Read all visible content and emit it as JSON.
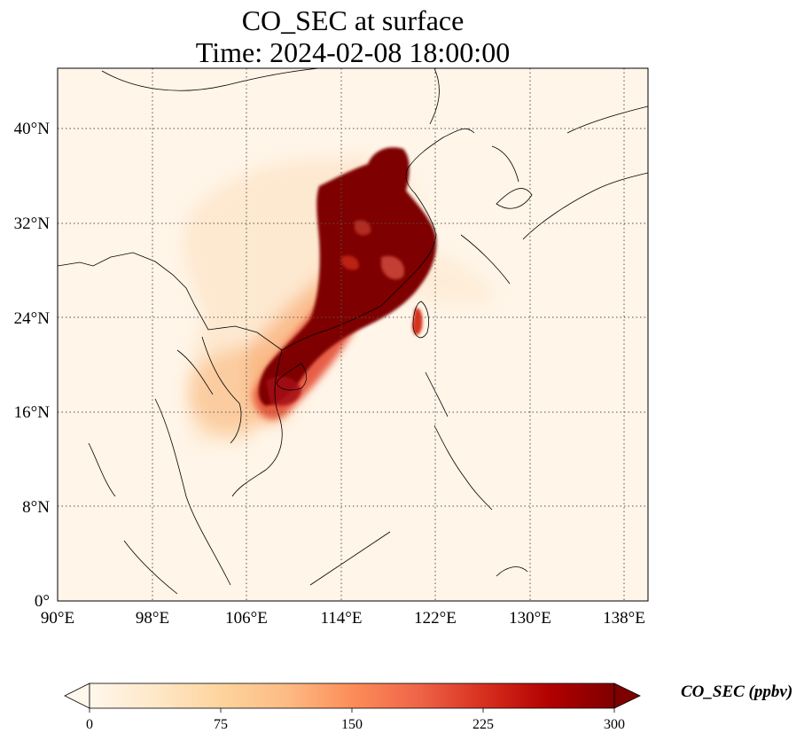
{
  "title": {
    "line1": "CO_SEC at surface",
    "line2": "Time: 2024-02-08 18:00:00"
  },
  "map": {
    "extent_lon": [
      90,
      140
    ],
    "extent_lat": [
      0,
      45
    ],
    "lon_ticks": [
      "90°E",
      "98°E",
      "106°E",
      "114°E",
      "122°E",
      "130°E",
      "138°E"
    ],
    "lat_ticks": [
      "0°",
      "8°N",
      "16°N",
      "24°N",
      "32°N",
      "40°N"
    ],
    "gridlines": "dotted"
  },
  "colorbar": {
    "label": "CO_SEC (ppbv)",
    "ticks": [
      "0",
      "75",
      "150",
      "225",
      "300"
    ],
    "range": [
      0,
      300
    ],
    "extend": "both",
    "colormap": "OrRd",
    "colors": [
      "#fff7ec",
      "#fee8c8",
      "#fdd49e",
      "#fdbb84",
      "#fc8d59",
      "#ef6548",
      "#d7301f",
      "#b30000",
      "#7f0000"
    ]
  }
}
